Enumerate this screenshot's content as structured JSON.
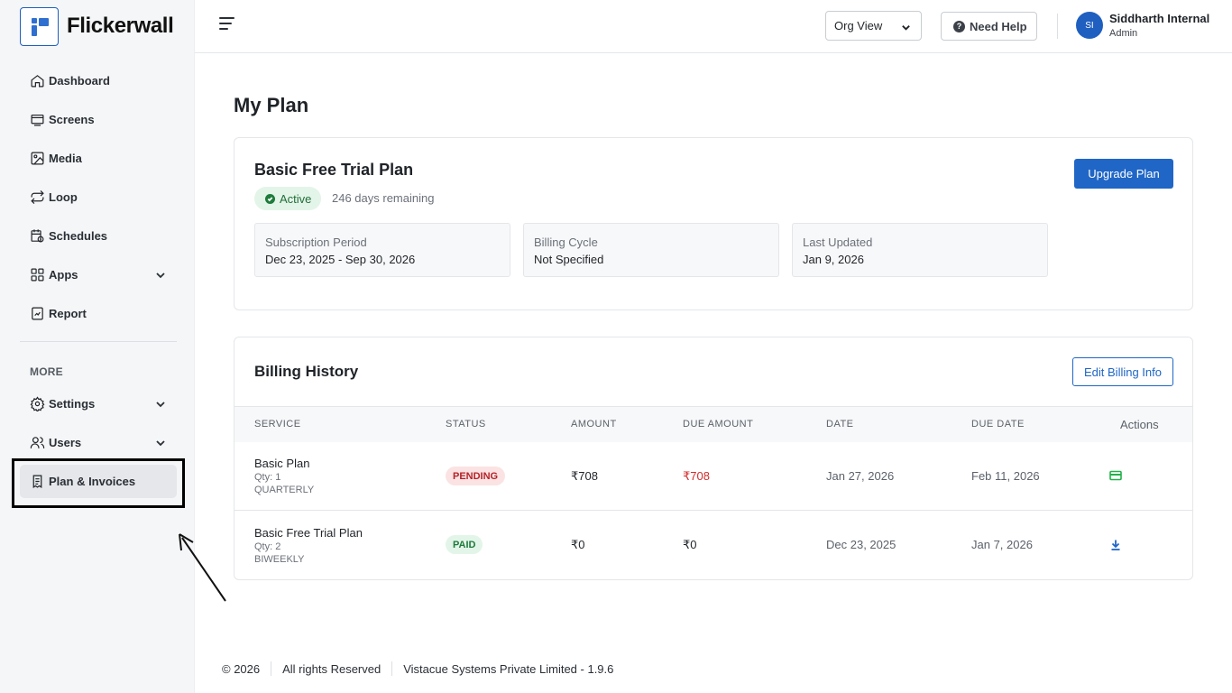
{
  "app": {
    "brand_name": "Flickerwall"
  },
  "sidebar": {
    "items": [
      {
        "label": "Dashboard",
        "icon": "home-icon"
      },
      {
        "label": "Screens",
        "icon": "screen-icon"
      },
      {
        "label": "Media",
        "icon": "image-icon"
      },
      {
        "label": "Loop",
        "icon": "loop-icon"
      },
      {
        "label": "Schedules",
        "icon": "calendar-clock-icon"
      },
      {
        "label": "Apps",
        "icon": "grid-icon",
        "expandable": true
      },
      {
        "label": "Report",
        "icon": "report-icon"
      }
    ],
    "section_label": "MORE",
    "more_items": [
      {
        "label": "Settings",
        "icon": "gear-icon",
        "expandable": true
      },
      {
        "label": "Users",
        "icon": "users-icon",
        "expandable": true
      },
      {
        "label": "Plan & Invoices",
        "icon": "invoice-icon",
        "active": true
      }
    ]
  },
  "header": {
    "view_select": "Org View",
    "help_label": "Need Help",
    "avatar_initials": "SI",
    "user_name": "Siddharth Internal",
    "user_role": "Admin"
  },
  "main": {
    "page_title": "My Plan",
    "plan": {
      "name": "Basic Free Trial Plan",
      "status": "Active",
      "remaining": "246 days remaining",
      "upgrade_label": "Upgrade Plan",
      "info": [
        {
          "label": "Subscription Period",
          "value": "Dec 23, 2025 - Sep 30, 2026"
        },
        {
          "label": "Billing Cycle",
          "value": "Not Specified"
        },
        {
          "label": "Last Updated",
          "value": "Jan 9, 2026"
        }
      ]
    },
    "billing": {
      "title": "Billing History",
      "edit_label": "Edit Billing Info",
      "columns": [
        "SERVICE",
        "STATUS",
        "AMOUNT",
        "DUE AMOUNT",
        "DATE",
        "DUE DATE",
        "Actions"
      ],
      "rows": [
        {
          "service": "Basic Plan",
          "qty": "Qty: 1",
          "cycle": "QUARTERLY",
          "status": "PENDING",
          "amount": "₹708",
          "due_amount": "₹708",
          "date": "Jan 27, 2026",
          "due_date": "Feb 11, 2026",
          "action_icon": "credit-card-icon"
        },
        {
          "service": "Basic Free Trial Plan",
          "qty": "Qty: 2",
          "cycle": "BIWEEKLY",
          "status": "PAID",
          "amount": "₹0",
          "due_amount": "₹0",
          "date": "Dec 23, 2025",
          "due_date": "Jan 7, 2026",
          "action_icon": "download-icon"
        }
      ]
    }
  },
  "footer": {
    "copyright": "© 2026",
    "rights": "All rights Reserved",
    "company": "Vistacue Systems Private Limited - 1.9.6"
  },
  "colors": {
    "primary": "#1f66c6",
    "active_green": "#1e7b3c",
    "pending_red": "#d12c2c",
    "sidebar_bg": "#f5f6f7"
  }
}
